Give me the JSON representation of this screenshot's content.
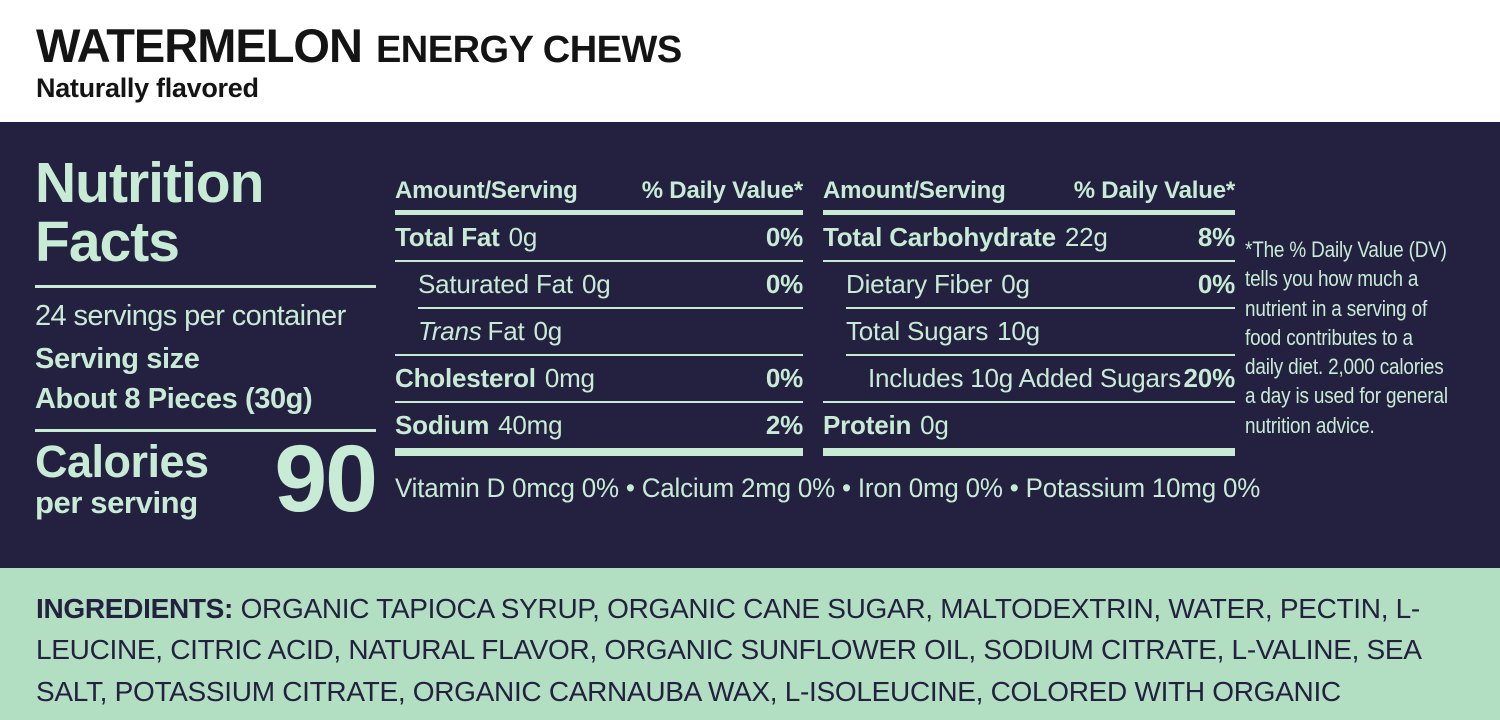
{
  "header": {
    "title_primary": "WATERMELON",
    "title_secondary": "ENERGY CHEWS",
    "subtitle": "Naturally flavored"
  },
  "panel": {
    "title_line1": "Nutrition",
    "title_line2": "Facts",
    "servings_per_container": "24 servings per container",
    "serving_size_label": "Serving size",
    "serving_size_value": "About 8 Pieces (30g)",
    "calories_label": "Calories",
    "calories_sublabel": "per serving",
    "calories_value": "90",
    "columns": [
      {
        "header_amount": "Amount/Serving",
        "header_dv": "% Daily Value*",
        "rows": [
          {
            "label": "Total Fat",
            "amount": "0g",
            "dv": "0%",
            "style": "bold",
            "indent": 0,
            "rule": "thin"
          },
          {
            "label": "Saturated Fat",
            "amount": "0g",
            "dv": "0%",
            "style": "regular",
            "indent": 1,
            "rule": "thin-indent"
          },
          {
            "italic": "Trans",
            "label": "Fat",
            "amount": "0g",
            "dv": "",
            "style": "regular",
            "indent": 1,
            "rule": "thin"
          },
          {
            "label": "Cholesterol",
            "amount": "0mg",
            "dv": "0%",
            "style": "bold",
            "indent": 0,
            "rule": "thin"
          },
          {
            "label": "Sodium",
            "amount": "40mg",
            "dv": "2%",
            "style": "bold",
            "indent": 0,
            "rule": "thick"
          }
        ]
      },
      {
        "header_amount": "Amount/Serving",
        "header_dv": "% Daily Value*",
        "rows": [
          {
            "label": "Total Carbohydrate",
            "amount": "22g",
            "dv": "8%",
            "style": "bold",
            "indent": 0,
            "rule": "thin"
          },
          {
            "label": "Dietary Fiber",
            "amount": "0g",
            "dv": "0%",
            "style": "regular",
            "indent": 1,
            "rule": "thin-indent"
          },
          {
            "label": "Total Sugars",
            "amount": "10g",
            "dv": "",
            "style": "regular",
            "indent": 1,
            "rule": "thin-indent"
          },
          {
            "label": "Includes 10g Added Sugars",
            "amount": "",
            "dv": "20%",
            "style": "regular",
            "indent": 2,
            "rule": "thin"
          },
          {
            "label": "Protein",
            "amount": "0g",
            "dv": "",
            "style": "bold",
            "indent": 0,
            "rule": "thick"
          }
        ]
      }
    ],
    "footnote_lines": [
      "*The % Daily Value (DV)",
      "tells you how much a",
      "nutrient in a serving of",
      "food contributes to a",
      "daily diet. 2,000 calories",
      "a day is used for general",
      "nutrition advice."
    ],
    "micronutrients": "Vitamin D 0mcg 0% • Calcium 2mg 0% • Iron 0mg 0% • Potassium 10mg 0%"
  },
  "ingredients": {
    "label": "INGREDIENTS:",
    "text": "ORGANIC TAPIOCA SYRUP, ORGANIC CANE SUGAR, MALTODEXTRIN, WATER, PECTIN, L-LEUCINE, CITRIC ACID, NATURAL FLAVOR, ORGANIC SUNFLOWER OIL, SODIUM CITRATE, L-VALINE, SEA SALT, POTASSIUM CITRATE, ORGANIC CARNAUBA WAX, L-ISOLEUCINE, COLORED WITH ORGANIC CARROT AND ORGANIC BLACKCURRANT EXTRACTS."
  },
  "colors": {
    "panel_background": "#242140",
    "panel_text_mint": "#c7ebd4",
    "ingredients_background": "#b2dec2",
    "header_text": "#141414"
  }
}
